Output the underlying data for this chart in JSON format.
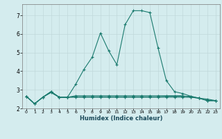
{
  "title": "",
  "xlabel": "Humidex (Indice chaleur)",
  "ylabel": "",
  "background_color": "#d4ecee",
  "line_color": "#1a7a6e",
  "grid_color": "#c0d8da",
  "xlim": [
    -0.5,
    23.5
  ],
  "ylim": [
    2.0,
    7.6
  ],
  "yticks": [
    2,
    3,
    4,
    5,
    6,
    7
  ],
  "xticks": [
    0,
    1,
    2,
    3,
    4,
    5,
    6,
    7,
    8,
    9,
    10,
    11,
    12,
    13,
    14,
    15,
    16,
    17,
    18,
    19,
    20,
    21,
    22,
    23
  ],
  "series": [
    [
      2.65,
      2.25,
      2.6,
      2.9,
      2.6,
      2.6,
      3.3,
      4.1,
      4.75,
      6.05,
      5.1,
      4.35,
      6.5,
      7.25,
      7.25,
      7.15,
      5.25,
      3.5,
      2.9,
      2.8,
      2.65,
      2.55,
      2.42,
      2.42
    ],
    [
      2.65,
      2.25,
      2.6,
      2.85,
      2.6,
      2.6,
      2.62,
      2.62,
      2.62,
      2.62,
      2.62,
      2.62,
      2.62,
      2.62,
      2.62,
      2.62,
      2.62,
      2.65,
      2.65,
      2.65,
      2.65,
      2.55,
      2.42,
      2.42
    ],
    [
      2.65,
      2.25,
      2.6,
      2.9,
      2.6,
      2.6,
      2.68,
      2.68,
      2.68,
      2.68,
      2.68,
      2.68,
      2.68,
      2.68,
      2.68,
      2.68,
      2.68,
      2.68,
      2.68,
      2.68,
      2.6,
      2.55,
      2.42,
      2.42
    ],
    [
      2.65,
      2.25,
      2.6,
      2.9,
      2.6,
      2.6,
      2.6,
      2.6,
      2.6,
      2.6,
      2.6,
      2.6,
      2.6,
      2.6,
      2.6,
      2.6,
      2.6,
      2.6,
      2.6,
      2.6,
      2.6,
      2.55,
      2.5,
      2.42
    ]
  ]
}
